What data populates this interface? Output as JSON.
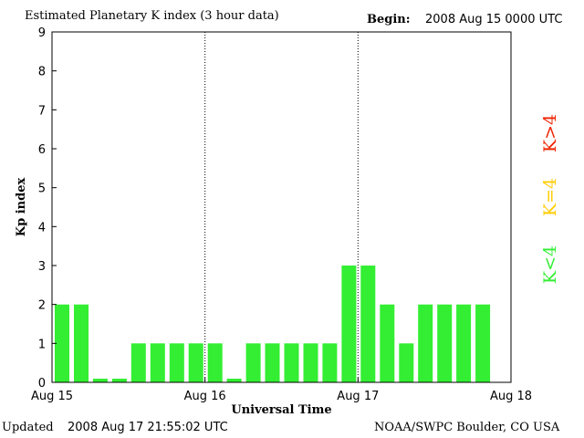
{
  "header": {
    "title": "Estimated Planetary K index (3 hour data)",
    "begin_label": "Begin:",
    "begin_value": "2008 Aug 15 0000 UTC"
  },
  "footer": {
    "updated_label": "Updated",
    "updated_value": "2008 Aug 17 21:55:02 UTC",
    "source": "NOAA/SWPC Boulder, CO USA"
  },
  "legend": {
    "items": [
      {
        "label": "K<4",
        "color": "#33ee33"
      },
      {
        "label": "K=4",
        "color": "#ffcc00"
      },
      {
        "label": "K>4",
        "color": "#ee2200"
      }
    ]
  },
  "chart_data": {
    "type": "bar",
    "xlabel": "Universal Time",
    "ylabel": "Kp index",
    "ylim": [
      0,
      9
    ],
    "yticks": [
      0,
      1,
      2,
      3,
      4,
      5,
      6,
      7,
      8,
      9
    ],
    "day_labels": [
      "Aug 15",
      "Aug 16",
      "Aug 17",
      "Aug 18"
    ],
    "bars_per_day": 8,
    "values": [
      2,
      2,
      0,
      0,
      1,
      1,
      1,
      1,
      1,
      0,
      1,
      1,
      1,
      1,
      1,
      3,
      3,
      2,
      1,
      2,
      2,
      2,
      2
    ],
    "bar_color": "#33ee33",
    "grid": false,
    "day_separators": true
  }
}
